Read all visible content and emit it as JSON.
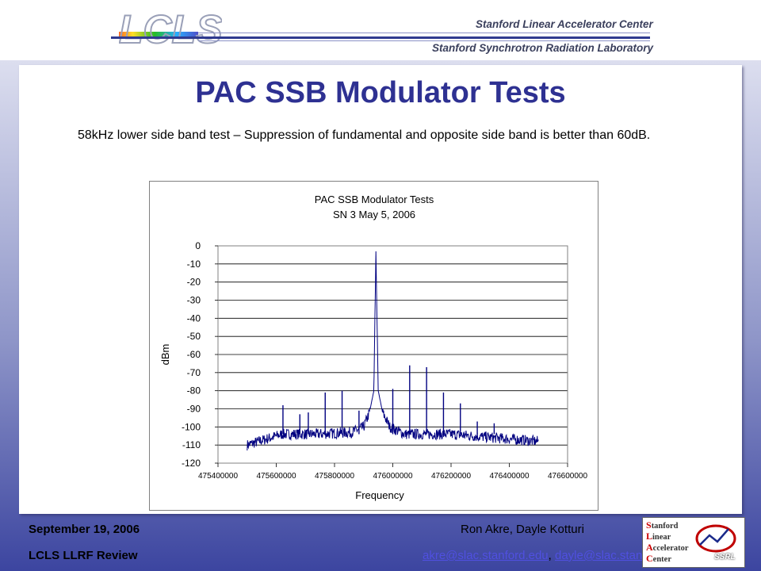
{
  "header": {
    "logo_text": "LCLS",
    "org_line1": "Stanford Linear Accelerator Center",
    "org_line2": "Stanford Synchrotron Radiation Laboratory"
  },
  "slide": {
    "title": "PAC SSB Modulator Tests",
    "description": "58kHz lower side band test – Suppression of fundamental and opposite side band is better than 60dB."
  },
  "chart_data": {
    "type": "line",
    "title": "PAC SSB Modulator Tests",
    "subtitle": "SN 3  May 5, 2006",
    "xlabel": "Frequency",
    "ylabel": "dBm",
    "xlim": [
      475400000,
      476600000
    ],
    "ylim": [
      -120,
      0
    ],
    "x_ticks": [
      475400000,
      475600000,
      475800000,
      476000000,
      476200000,
      476400000,
      476600000
    ],
    "y_ticks": [
      0,
      -10,
      -20,
      -30,
      -40,
      -50,
      -60,
      -70,
      -80,
      -90,
      -100,
      -110,
      -120
    ],
    "grid": true,
    "legend": "none",
    "line_color": "#000080",
    "noise_floor_dbm": -104,
    "trace_x_range": [
      475500000,
      476500000
    ],
    "series": [
      {
        "values": [
          {
            "x": 475500000,
            "y": -110
          },
          {
            "x": 475620000,
            "y": -104
          },
          {
            "x": 475740000,
            "y": -104
          },
          {
            "x": 475860000,
            "y": -103
          },
          {
            "x": 475900000,
            "y": -100
          },
          {
            "x": 475920000,
            "y": -92
          },
          {
            "x": 475935000,
            "y": -80
          },
          {
            "x": 475942000,
            "y": -3
          },
          {
            "x": 475950000,
            "y": -80
          },
          {
            "x": 475965000,
            "y": -92
          },
          {
            "x": 475990000,
            "y": -100
          },
          {
            "x": 476040000,
            "y": -104
          },
          {
            "x": 476200000,
            "y": -104
          },
          {
            "x": 476500000,
            "y": -108
          }
        ],
        "spurs": [
          {
            "x": 475623000,
            "y": -88
          },
          {
            "x": 475681000,
            "y": -93
          },
          {
            "x": 475710000,
            "y": -92
          },
          {
            "x": 475768000,
            "y": -81
          },
          {
            "x": 475826000,
            "y": -80
          },
          {
            "x": 475884000,
            "y": -91
          },
          {
            "x": 476000000,
            "y": -79
          },
          {
            "x": 476058000,
            "y": -66
          },
          {
            "x": 476116000,
            "y": -67
          },
          {
            "x": 476174000,
            "y": -81
          },
          {
            "x": 476232000,
            "y": -87
          },
          {
            "x": 476290000,
            "y": -97
          },
          {
            "x": 476348000,
            "y": -98
          }
        ]
      }
    ]
  },
  "footer": {
    "date": "September 19, 2006",
    "review": "LCLS LLRF Review",
    "authors": "Ron Akre, Dayle Kotturi",
    "email1": "akre@slac.stanford.edu",
    "separator": ", ",
    "email2": "dayle@slac.stanford.edu"
  },
  "slac_logo": {
    "line1_initial": "S",
    "line1_rest": "tanford",
    "line2_initial": "L",
    "line2_rest": "inear",
    "line3_initial": "A",
    "line3_rest": "ccelerator",
    "line4_initial": "C",
    "line4_rest": "enter",
    "badge": "SSRL"
  }
}
